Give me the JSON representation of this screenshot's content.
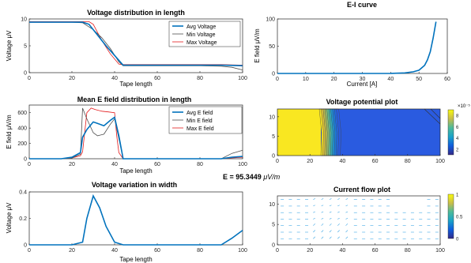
{
  "colors": {
    "avg": "#0072BD",
    "min": "#4D4D4D",
    "max": "#E31A1C",
    "blue": "#2A6FD6",
    "yellow": "#F9E721",
    "axis": "#262626"
  },
  "e_readout": {
    "prefix": "E  =  95.3449",
    "unit": "μV/m"
  },
  "chart_data": [
    {
      "id": "voltage-length",
      "type": "line",
      "title": "Voltage distribution in length",
      "xlabel": "Tape length",
      "ylabel": "Voltage μV",
      "xlim": [
        0,
        100
      ],
      "ylim": [
        0,
        10
      ],
      "xticks": [
        0,
        20,
        40,
        60,
        80,
        100
      ],
      "yticks": [
        0,
        5,
        10
      ],
      "legend_position": "top-right",
      "series": [
        {
          "name": "Avg Voltage",
          "role": "avg",
          "x": [
            0,
            10,
            20,
            25,
            28,
            32,
            36,
            40,
            44,
            50,
            60,
            70,
            80,
            90,
            95,
            100
          ],
          "y": [
            9.4,
            9.4,
            9.4,
            9.4,
            9,
            7,
            5,
            3.2,
            1.4,
            1.4,
            1.4,
            1.4,
            1.4,
            1.4,
            1.35,
            1.3
          ]
        },
        {
          "name": "Min Voltage",
          "role": "min",
          "x": [
            0,
            10,
            20,
            25,
            30,
            34,
            38,
            42,
            44,
            50,
            60,
            70,
            80,
            90,
            95,
            100
          ],
          "y": [
            9.4,
            9.4,
            9.4,
            9.3,
            8,
            6.5,
            4.5,
            2,
            1.3,
            1.3,
            1.3,
            1.3,
            1.3,
            1.2,
            1,
            0.5
          ]
        },
        {
          "name": "Max Voltage",
          "role": "max",
          "x": [
            0,
            10,
            20,
            25,
            28,
            30,
            34,
            38,
            42,
            44,
            50,
            60,
            70,
            80,
            90,
            100
          ],
          "y": [
            9.5,
            9.5,
            9.5,
            9.5,
            9.5,
            9,
            6,
            3.5,
            1.6,
            1.5,
            1.5,
            1.5,
            1.5,
            1.5,
            1.5,
            1.4
          ]
        }
      ]
    },
    {
      "id": "ei-curve",
      "type": "line",
      "title": "E-I curve",
      "xlabel": "Current [A]",
      "ylabel": "E field μV/m",
      "xlim": [
        0,
        60
      ],
      "ylim": [
        0,
        100
      ],
      "xticks": [
        0,
        10,
        20,
        30,
        40,
        50,
        60
      ],
      "yticks": [
        0,
        50,
        100
      ],
      "series": [
        {
          "role": "avg",
          "x": [
            0,
            10,
            20,
            30,
            40,
            45,
            48,
            50,
            52,
            53,
            54,
            55,
            56
          ],
          "y": [
            0,
            0,
            0,
            0,
            0.2,
            1,
            3,
            6,
            15,
            25,
            40,
            65,
            95
          ]
        }
      ]
    },
    {
      "id": "mean-e-field",
      "type": "line",
      "title": "Mean E field distribution in length",
      "xlabel": "Tape length",
      "ylabel": "E field μV/m",
      "xlim": [
        0,
        100
      ],
      "ylim": [
        0,
        700
      ],
      "xticks": [
        0,
        20,
        40,
        60,
        80,
        100
      ],
      "yticks": [
        0,
        200,
        400,
        600
      ],
      "legend_position": "top-right",
      "series": [
        {
          "name": "Avg E field",
          "role": "avg",
          "x": [
            0,
            15,
            20,
            24,
            25,
            27,
            30,
            32,
            35,
            38,
            40,
            42,
            44,
            50,
            60,
            70,
            80,
            90,
            95,
            100
          ],
          "y": [
            0,
            0,
            20,
            80,
            280,
            380,
            480,
            460,
            430,
            500,
            540,
            300,
            0,
            0,
            0,
            0,
            0,
            0,
            20,
            30
          ]
        },
        {
          "name": "Min E field",
          "role": "min",
          "x": [
            0,
            15,
            20,
            24,
            25,
            27,
            30,
            32,
            35,
            38,
            40,
            42,
            44,
            50,
            60,
            70,
            80,
            90,
            95,
            100
          ],
          "y": [
            0,
            0,
            10,
            60,
            660,
            520,
            340,
            300,
            320,
            450,
            520,
            260,
            0,
            0,
            0,
            0,
            0,
            0,
            70,
            110
          ]
        },
        {
          "name": "Max E field",
          "role": "max",
          "x": [
            0,
            15,
            20,
            24,
            25,
            27,
            29,
            31,
            34,
            37,
            40,
            41,
            42,
            44,
            50,
            60,
            70,
            80,
            90,
            95,
            100
          ],
          "y": [
            0,
            0,
            10,
            40,
            90,
            600,
            660,
            640,
            620,
            610,
            600,
            300,
            80,
            0,
            0,
            0,
            0,
            0,
            0,
            10,
            20
          ]
        }
      ]
    },
    {
      "id": "voltage-potential",
      "type": "heatmap",
      "title": "Voltage potential plot",
      "xlim": [
        0,
        100
      ],
      "ylim": [
        0,
        12
      ],
      "xticks": [
        0,
        20,
        40,
        60,
        80,
        100
      ],
      "yticks": [
        0,
        5,
        10
      ],
      "colorbar_ticks": [
        2,
        4,
        6,
        8
      ],
      "colorbar_exponent": "×10⁻⁵"
    },
    {
      "id": "voltage-width",
      "type": "line",
      "title": "Voltage variation in width",
      "xlabel": "Tape length",
      "ylabel": "Voltage μV",
      "xlim": [
        0,
        100
      ],
      "ylim": [
        0,
        0.4
      ],
      "xticks": [
        0,
        20,
        40,
        60,
        80,
        100
      ],
      "yticks": [
        0,
        0.2,
        0.4
      ],
      "series": [
        {
          "role": "avg",
          "x": [
            0,
            10,
            20,
            25,
            27,
            30,
            33,
            36,
            40,
            44,
            50,
            60,
            70,
            80,
            90,
            95,
            100
          ],
          "y": [
            0,
            0,
            0,
            0.02,
            0.2,
            0.37,
            0.28,
            0.14,
            0.02,
            0,
            0,
            0,
            0,
            0,
            0,
            0.05,
            0.11
          ]
        }
      ]
    },
    {
      "id": "current-flow",
      "type": "scatter",
      "title": "Current flow plot",
      "xlim": [
        0,
        100
      ],
      "ylim": [
        0,
        12
      ],
      "xticks": [
        0,
        20,
        40,
        60,
        80,
        100
      ],
      "yticks": [
        0,
        5,
        10
      ],
      "colorbar_ticks": [
        0,
        0.5,
        1
      ]
    }
  ]
}
